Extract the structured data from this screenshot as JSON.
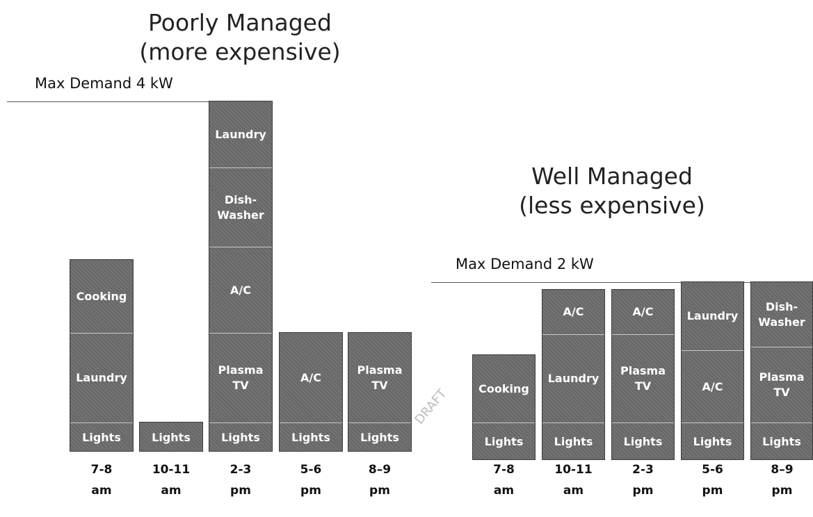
{
  "panels": [
    {
      "title": "Poorly Managed\n(more expensive)",
      "max_demand": "Max Demand 4 kW",
      "columns": [
        {
          "time": "7-8\nam",
          "blocks": [
            "Cooking",
            "Laundry",
            "Lights"
          ]
        },
        {
          "time": "10-11\nam",
          "blocks": [
            "Lights"
          ]
        },
        {
          "time": "2-3\npm",
          "blocks": [
            "Laundry",
            "Dish-\nWasher",
            "A/C",
            "Plasma\nTV",
            "Lights"
          ]
        },
        {
          "time": "5-6\npm",
          "blocks": [
            "A/C",
            "Lights"
          ]
        },
        {
          "time": "8–9\npm",
          "blocks": [
            "Plasma\nTV",
            "Lights"
          ]
        }
      ]
    },
    {
      "title": "Well Managed\n(less expensive)",
      "max_demand": "Max Demand 2 kW",
      "columns": [
        {
          "time": "7-8\nam",
          "blocks": [
            "Cooking",
            "Lights"
          ]
        },
        {
          "time": "10-11\nam",
          "blocks": [
            "A/C",
            "Laundry",
            "Lights"
          ]
        },
        {
          "time": "2-3\npm",
          "blocks": [
            "A/C",
            "Plasma\nTV",
            "Lights"
          ]
        },
        {
          "time": "5-6\npm",
          "blocks": [
            "Laundry",
            "A/C",
            "Lights"
          ]
        },
        {
          "time": "8–9\npm",
          "blocks": [
            "Dish-\nWasher",
            "Plasma\nTV",
            "Lights"
          ]
        }
      ]
    }
  ],
  "watermark": "DRAFT"
}
